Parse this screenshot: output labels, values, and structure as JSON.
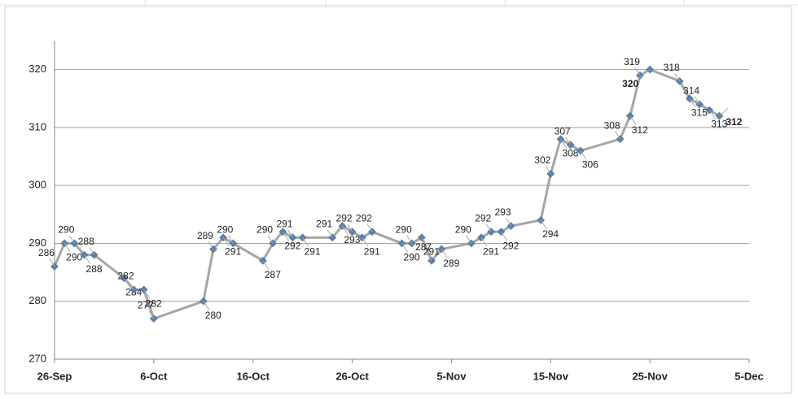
{
  "chart_data": {
    "type": "line",
    "x": [
      "26-Sep",
      "27-Sep",
      "28-Sep",
      "29-Sep",
      "30-Sep",
      "3-Oct",
      "4-Oct",
      "5-Oct",
      "6-Oct",
      "11-Oct",
      "12-Oct",
      "13-Oct",
      "14-Oct",
      "17-Oct",
      "18-Oct",
      "19-Oct",
      "20-Oct",
      "21-Oct",
      "24-Oct",
      "25-Oct",
      "26-Oct",
      "27-Oct",
      "28-Oct",
      "31-Oct",
      "1-Nov",
      "2-Nov",
      "3-Nov",
      "4-Nov",
      "7-Nov",
      "8-Nov",
      "9-Nov",
      "10-Nov",
      "11-Nov",
      "14-Nov",
      "15-Nov",
      "16-Nov",
      "17-Nov",
      "18-Nov",
      "22-Nov",
      "23-Nov",
      "24-Nov",
      "25-Nov",
      "28-Nov",
      "29-Nov",
      "30-Nov",
      "1-Dec",
      "2-Dec"
    ],
    "series": [
      {
        "color": "#a6a6a6",
        "marker_color": "#5b7fa8",
        "values": [
          286,
          290,
          290,
          288,
          288,
          284,
          282,
          282,
          277,
          280,
          289,
          291,
          290,
          287,
          290,
          292,
          291,
          291,
          291,
          293,
          292,
          291,
          292,
          290,
          290,
          291,
          287,
          289,
          290,
          291,
          292,
          292,
          293,
          294,
          302,
          308,
          307,
          306,
          308,
          312,
          319,
          320,
          318,
          315,
          314,
          313,
          312
        ]
      }
    ],
    "xlim": [
      "26-Sep",
      "5-Dec"
    ],
    "xticks": [
      "26-Sep",
      "6-Oct",
      "16-Oct",
      "26-Oct",
      "5-Nov",
      "15-Nov",
      "25-Nov",
      "5-Dec"
    ],
    "ylim": [
      270,
      325
    ],
    "yticks": [
      270,
      280,
      290,
      300,
      310,
      320
    ],
    "grid": true
  }
}
